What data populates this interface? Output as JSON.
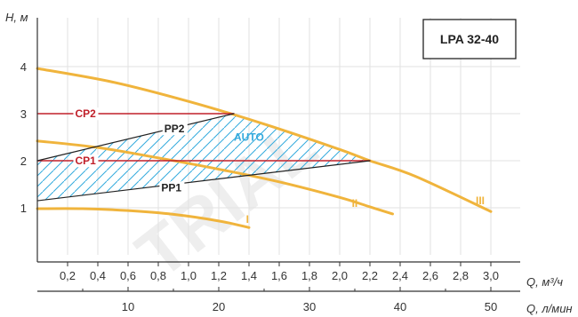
{
  "chart_data": {
    "type": "line",
    "title": "LPA 32-40",
    "ylabel": "H, м",
    "xlabel": "Q, м³/ч",
    "xlabel2": "Q, л/мин",
    "xlim": [
      0,
      3.2
    ],
    "ylim": [
      0,
      4.5
    ],
    "x_ticks": [
      "0,2",
      "0,4",
      "0,6",
      "0,8",
      "1,0",
      "1,2",
      "1,4",
      "1,6",
      "1,8",
      "2,0",
      "2,2",
      "2,4",
      "2,6",
      "2,8",
      "3,0"
    ],
    "x_tick_values": [
      0.2,
      0.4,
      0.6,
      0.8,
      1.0,
      1.2,
      1.4,
      1.6,
      1.8,
      2.0,
      2.2,
      2.4,
      2.6,
      2.8,
      3.0
    ],
    "x2_ticks": [
      "10",
      "20",
      "30",
      "40",
      "50"
    ],
    "x2_tick_values": [
      10,
      20,
      30,
      40,
      50
    ],
    "y_ticks": [
      "1",
      "2",
      "3",
      "4"
    ],
    "y_tick_values": [
      1,
      2,
      3,
      4
    ],
    "series": [
      {
        "name": "I",
        "color": "#f0b43c",
        "x": [
          0,
          0.3,
          0.6,
          0.9,
          1.2,
          1.4
        ],
        "y": [
          0.98,
          0.98,
          0.94,
          0.86,
          0.72,
          0.58
        ]
      },
      {
        "name": "II",
        "color": "#f0b43c",
        "x": [
          0,
          0.4,
          0.8,
          1.2,
          1.6,
          2.0,
          2.2,
          2.35
        ],
        "y": [
          2.42,
          2.28,
          2.06,
          1.82,
          1.55,
          1.22,
          1.02,
          0.87
        ]
      },
      {
        "name": "III",
        "color": "#f0b43c",
        "x": [
          0,
          0.5,
          1.0,
          1.5,
          2.0,
          2.2,
          2.5,
          3.0
        ],
        "y": [
          3.96,
          3.67,
          3.26,
          2.78,
          2.24,
          2.0,
          1.67,
          0.92
        ]
      },
      {
        "name": "CP2",
        "color": "#c0202a",
        "x": [
          0,
          1.3
        ],
        "y": [
          3.0,
          3.0
        ]
      },
      {
        "name": "CP1",
        "color": "#c0202a",
        "x": [
          0,
          2.2
        ],
        "y": [
          2.0,
          2.0
        ]
      },
      {
        "name": "PP2",
        "color": "#222222",
        "x": [
          0,
          1.3
        ],
        "y": [
          2.0,
          3.0
        ]
      },
      {
        "name": "PP1",
        "color": "#222222",
        "x": [
          0,
          2.2
        ],
        "y": [
          1.15,
          2.0
        ]
      }
    ],
    "auto_region": {
      "label": "AUTO",
      "color": "#33aadd"
    },
    "grid": true,
    "legend": "none"
  },
  "watermark": "TRIAL"
}
